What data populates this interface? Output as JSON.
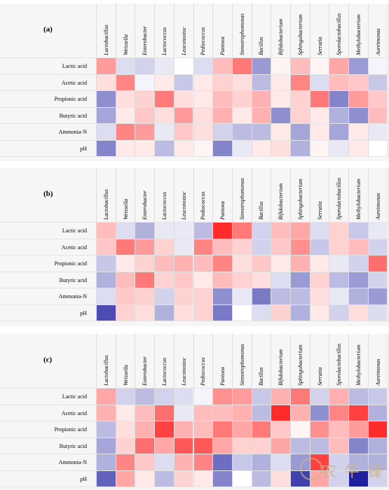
{
  "watermark_text": "农 牛 锋",
  "colors": {
    "low": "#1f1fa0",
    "mid": "#ffffff",
    "high": "#ff2020",
    "panel_bg": "#f6f6f6"
  },
  "chart_data": [
    {
      "type": "heatmap",
      "panel_label": "(a)",
      "columns": [
        "Lactobacillus",
        "Weissella",
        "Enterobacter",
        "Lactococcus",
        "Leuconostoc",
        "Pediococcus",
        "Pantoea",
        "Stenotrophomonas",
        "Bacillus",
        "Bifidobacterium",
        "Sphingobacterium",
        "Serratia",
        "Sporolactobacillus",
        "Methylobacterium",
        "Aureimonas"
      ],
      "rows": [
        "Lactic acid",
        "Acetic acid",
        "Propionic acid",
        "Butyric acid",
        "Ammonia-N",
        "pH"
      ],
      "scale": [
        -1,
        1
      ],
      "values": [
        [
          0.45,
          -0.15,
          -0.2,
          -0.1,
          0.0,
          -0.15,
          0.3,
          0.6,
          -0.45,
          0.05,
          0.3,
          0.05,
          0.4,
          -0.45,
          -0.05
        ],
        [
          0.15,
          0.55,
          -0.05,
          0.1,
          -0.25,
          0.1,
          0.2,
          0.15,
          -0.3,
          0.1,
          0.55,
          -0.15,
          0.3,
          0.25,
          -0.25
        ],
        [
          -0.5,
          0.15,
          0.2,
          0.6,
          0.15,
          0.1,
          0.3,
          0.2,
          0.35,
          0.1,
          0.2,
          0.6,
          -0.55,
          0.45,
          0.25
        ],
        [
          -0.4,
          0.1,
          0.25,
          0.15,
          0.45,
          0.15,
          0.35,
          0.1,
          0.35,
          -0.5,
          0.2,
          0.1,
          -0.35,
          -0.5,
          0.3
        ],
        [
          -0.15,
          0.55,
          0.45,
          -0.1,
          0.25,
          0.15,
          -0.2,
          -0.3,
          -0.3,
          0.1,
          -0.4,
          0.1,
          -0.4,
          0.1,
          -0.1
        ],
        [
          -0.55,
          0.1,
          0.1,
          -0.3,
          0.1,
          0.05,
          -0.55,
          -0.1,
          0.1,
          0.15,
          -0.35,
          0.05,
          -0.1,
          0.1,
          0.0
        ]
      ]
    },
    {
      "type": "heatmap",
      "panel_label": "(b)",
      "columns": [
        "Lactobacillus",
        "Weissella",
        "Enterobacter",
        "Lactococcus",
        "Leuconostoc",
        "Pediococcus",
        "Pantoea",
        "Stenotrophomonas",
        "Bacillus",
        "Bifidobacterium",
        "Sphingobacterium",
        "Serratia",
        "Sporolactobacillus",
        "Methylobacterium",
        "Aureimonas"
      ],
      "rows": [
        "Lactic acid",
        "Acetic acid",
        "Propionic acid",
        "Butyric acid",
        "Ammonia-N",
        "pH"
      ],
      "scale": [
        -1,
        1
      ],
      "values": [
        [
          0.3,
          -0.15,
          -0.35,
          -0.1,
          -0.1,
          -0.3,
          0.95,
          0.6,
          -0.2,
          0.3,
          0.4,
          -0.15,
          0.2,
          -0.25,
          -0.1
        ],
        [
          0.25,
          0.6,
          0.45,
          0.2,
          -0.1,
          0.55,
          0.3,
          0.2,
          -0.2,
          0.25,
          0.5,
          -0.25,
          0.2,
          0.3,
          -0.2
        ],
        [
          -0.25,
          0.1,
          0.2,
          0.3,
          0.35,
          0.3,
          0.55,
          0.15,
          0.25,
          0.1,
          0.35,
          0.1,
          -0.1,
          -0.2,
          0.65
        ],
        [
          -0.35,
          0.3,
          0.6,
          0.2,
          0.25,
          0.1,
          0.3,
          0.2,
          0.15,
          -0.15,
          -0.45,
          0.2,
          -0.3,
          -0.45,
          -0.2
        ],
        [
          -0.15,
          0.25,
          0.2,
          -0.2,
          0.2,
          0.2,
          -0.5,
          -0.1,
          -0.6,
          -0.3,
          -0.3,
          0.15,
          -0.1,
          -0.35,
          -0.45
        ],
        [
          -0.8,
          0.2,
          0.15,
          -0.35,
          0.15,
          0.2,
          -0.6,
          0.0,
          -0.15,
          0.2,
          -0.35,
          0.1,
          -0.2,
          0.15,
          -0.15
        ]
      ]
    },
    {
      "type": "heatmap",
      "panel_label": "(c)",
      "columns": [
        "Lactobacillus",
        "Weissella",
        "Enterobacter",
        "Lactococcus",
        "Leuconostoc",
        "Pediococcus",
        "Pantoea",
        "Stenotrophomonas",
        "Bacillus",
        "Bifidobacterium",
        "Sphingobacterium",
        "Serratia",
        "Sporolactobacillus",
        "Methylobacterium",
        "Aureimonas"
      ],
      "rows": [
        "Lactic acid",
        "Acetic acid",
        "Propionic acid",
        "Butyric acid",
        "Ammonia-N",
        "pH"
      ],
      "scale": [
        -1,
        1
      ],
      "values": [
        [
          0.4,
          -0.2,
          -0.3,
          -0.2,
          -0.15,
          -0.05,
          0.5,
          0.45,
          -0.25,
          0.35,
          0.6,
          -0.2,
          0.35,
          -0.3,
          -0.25
        ],
        [
          0.35,
          0.1,
          0.3,
          0.65,
          -0.1,
          0.3,
          0.3,
          0.35,
          -0.3,
          0.95,
          0.35,
          -0.5,
          0.55,
          0.85,
          -0.35
        ],
        [
          -0.3,
          0.15,
          0.35,
          0.85,
          0.35,
          0.3,
          0.6,
          0.4,
          0.6,
          0.25,
          0.05,
          0.5,
          0.3,
          0.45,
          0.95
        ],
        [
          -0.4,
          0.2,
          0.65,
          0.4,
          0.75,
          0.75,
          0.4,
          0.2,
          0.2,
          0.4,
          -0.3,
          -0.3,
          0.3,
          -0.55,
          -0.35
        ],
        [
          -0.35,
          0.55,
          0.25,
          -0.15,
          0.35,
          0.55,
          -0.65,
          -0.25,
          -0.35,
          -0.15,
          -0.45,
          0.85,
          -0.2,
          -0.35,
          -0.35
        ],
        [
          -0.7,
          0.4,
          0.1,
          -0.3,
          0.2,
          0.1,
          -0.55,
          0.0,
          -0.3,
          0.15,
          -0.85,
          0.4,
          -0.2,
          -1.0,
          -0.2
        ]
      ]
    }
  ]
}
